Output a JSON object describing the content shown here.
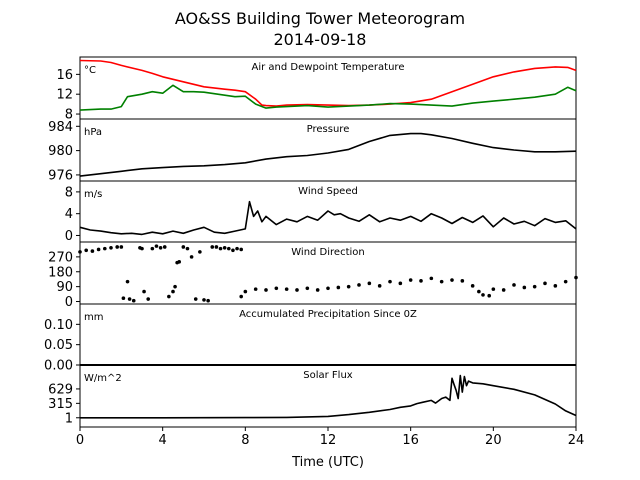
{
  "figure": {
    "title": "AO&SS Building Tower Meteorogram",
    "subtitle": "2014-09-18",
    "xlabel": "Time (UTC)",
    "x_ticks": [
      0,
      4,
      8,
      12,
      16,
      20,
      24
    ],
    "xlim": [
      0,
      24
    ]
  },
  "colors": {
    "temperature": "#ff0000",
    "dewpoint": "#008000",
    "line": "#000000"
  },
  "chart_data": [
    {
      "type": "line",
      "title": "Air and Dewpoint Temperature",
      "unit": "°C",
      "ylim": [
        7,
        19.5
      ],
      "y_ticks": [
        8,
        12,
        16
      ],
      "series": [
        {
          "color": "#ff0000",
          "x": [
            0,
            1,
            1.5,
            2,
            3,
            3.5,
            4,
            4.5,
            5,
            6,
            7,
            7.5,
            8,
            8.5,
            8.8,
            9,
            9.5,
            10,
            11,
            12,
            13,
            14,
            15,
            16,
            17,
            18,
            19,
            20,
            21,
            22,
            23,
            23.6,
            24
          ],
          "y": [
            18.8,
            18.7,
            18.4,
            17.8,
            16.8,
            16.2,
            15.5,
            15,
            14.5,
            13.5,
            13,
            12.8,
            12.5,
            11,
            9.8,
            9.7,
            9.6,
            9.8,
            9.9,
            9.8,
            9.7,
            9.8,
            10,
            10.3,
            11,
            12.5,
            14,
            15.5,
            16.5,
            17.2,
            17.5,
            17.4,
            16.8
          ]
        },
        {
          "color": "#008000",
          "x": [
            0,
            1,
            1.5,
            2,
            2.3,
            3,
            3.5,
            4,
            4.5,
            5,
            5.5,
            6,
            7,
            7.5,
            8,
            8.5,
            9,
            9.5,
            10,
            11,
            12,
            13,
            14,
            15,
            16,
            17,
            18,
            19,
            20,
            21,
            22,
            23,
            23.6,
            24
          ],
          "y": [
            8.8,
            9,
            9,
            9.5,
            11.5,
            12,
            12.5,
            12.2,
            13.8,
            12.5,
            12.5,
            12.4,
            11.8,
            11.5,
            11.6,
            10,
            9.2,
            9.4,
            9.5,
            9.7,
            9.4,
            9.6,
            9.8,
            10.1,
            10,
            9.8,
            9.6,
            10.2,
            10.6,
            11,
            11.4,
            12,
            13.4,
            12.7
          ]
        }
      ]
    },
    {
      "type": "line",
      "title": "Pressure",
      "unit": "hPa",
      "ylim": [
        975,
        985.2
      ],
      "y_ticks": [
        976,
        980,
        984
      ],
      "series": [
        {
          "color": "#000000",
          "x": [
            0,
            1,
            2,
            3,
            4,
            5,
            6,
            7,
            8,
            9,
            10,
            11,
            12,
            13,
            14,
            15,
            16,
            16.5,
            17,
            18,
            19,
            20,
            21,
            22,
            23,
            24
          ],
          "y": [
            975.8,
            976.2,
            976.6,
            977,
            977.2,
            977.4,
            977.5,
            977.7,
            978,
            978.6,
            979,
            979.2,
            979.6,
            980.2,
            981.5,
            982.5,
            982.8,
            982.8,
            982.6,
            982,
            981.2,
            980.5,
            980.1,
            979.8,
            979.8,
            979.9
          ]
        }
      ]
    },
    {
      "type": "line",
      "title": "Wind Speed",
      "unit": "m/s",
      "ylim": [
        -1.2,
        10
      ],
      "y_ticks": [
        0,
        4,
        8
      ],
      "series": [
        {
          "color": "#000000",
          "x": [
            0,
            0.5,
            1,
            1.5,
            2,
            2.5,
            3,
            3.5,
            4,
            4.5,
            5,
            5.5,
            6,
            6.5,
            7,
            7.5,
            8,
            8.2,
            8.4,
            8.6,
            8.8,
            9,
            9.5,
            10,
            10.5,
            11,
            11.5,
            12,
            12.3,
            12.6,
            13,
            13.5,
            14,
            14.5,
            15,
            15.5,
            16,
            16.5,
            17,
            17.5,
            18,
            18.5,
            19,
            19.5,
            20,
            20.5,
            21,
            21.5,
            22,
            22.5,
            23,
            23.5,
            24
          ],
          "y": [
            1.5,
            1,
            0.8,
            0.5,
            0.3,
            0.4,
            0.2,
            0.6,
            0.3,
            0.8,
            0.4,
            1,
            1.5,
            0.6,
            0.4,
            0.8,
            1.2,
            6.2,
            3.5,
            4.5,
            2.5,
            3.5,
            2,
            3,
            2.5,
            3.5,
            2.8,
            4.5,
            3.8,
            4,
            3.2,
            2.6,
            3.8,
            2.5,
            3.2,
            2.8,
            3.5,
            2.6,
            4,
            3.2,
            2.2,
            3.3,
            2.4,
            3.6,
            1.6,
            3.2,
            2.1,
            2.6,
            1.8,
            3.1,
            2.4,
            2.7,
            1.2
          ]
        }
      ]
    },
    {
      "type": "scatter",
      "title": "Wind Direction",
      "ylim": [
        -15,
        360
      ],
      "y_ticks": [
        0,
        90,
        180,
        270
      ],
      "series": [
        {
          "color": "#000000",
          "x": [
            0,
            0.3,
            0.6,
            0.9,
            1.2,
            1.5,
            1.8,
            2,
            2.1,
            2.3,
            2.4,
            2.6,
            2.9,
            3,
            3.1,
            3.3,
            3.5,
            3.7,
            3.9,
            4.1,
            4.3,
            4.5,
            4.6,
            4.7,
            4.8,
            5,
            5.2,
            5.4,
            5.6,
            5.8,
            6,
            6.2,
            6.4,
            6.6,
            6.8,
            7,
            7.2,
            7.4,
            7.6,
            7.8
          ],
          "y": [
            300,
            310,
            305,
            315,
            320,
            325,
            330,
            330,
            20,
            120,
            15,
            5,
            325,
            320,
            60,
            15,
            320,
            335,
            325,
            330,
            30,
            60,
            90,
            235,
            240,
            330,
            320,
            270,
            15,
            300,
            10,
            5,
            330,
            330,
            320,
            325,
            320,
            310,
            320,
            315
          ]
        },
        {
          "color": "#000000",
          "x": [
            7.8,
            8,
            8.5,
            9,
            9.5,
            10,
            10.5,
            11,
            11.5,
            12,
            12.5,
            13,
            13.5,
            14,
            14.5,
            15,
            15.5,
            16,
            16.5,
            17,
            17.5,
            18,
            18.5,
            19,
            19.3,
            19.5,
            19.8,
            20,
            20.5,
            21,
            21.5,
            22,
            22.5,
            23,
            23.5,
            24
          ],
          "y": [
            30,
            60,
            75,
            70,
            80,
            75,
            70,
            80,
            70,
            80,
            85,
            90,
            100,
            110,
            95,
            120,
            110,
            130,
            125,
            140,
            120,
            130,
            125,
            95,
            60,
            40,
            35,
            75,
            70,
            100,
            85,
            90,
            110,
            95,
            120,
            145
          ]
        }
      ]
    },
    {
      "type": "line",
      "title": "Accumulated Precipitation Since 0Z",
      "unit": "mm",
      "ylim": [
        0,
        0.15
      ],
      "y_ticks": [
        "0.00",
        "0.05",
        "0.10"
      ],
      "series": [
        {
          "color": "#000000",
          "x": [
            0,
            24
          ],
          "y": [
            0,
            0
          ]
        }
      ]
    },
    {
      "type": "line",
      "title": "Solar Flux",
      "unit": "W/m^2",
      "ylim": [
        -200,
        1150
      ],
      "y_ticks": [
        1,
        315,
        629
      ],
      "series": [
        {
          "color": "#000000",
          "x": [
            0,
            2,
            4,
            6,
            8,
            10,
            12,
            13,
            14,
            15,
            15.5,
            16,
            16.3,
            16.6,
            17,
            17.2,
            17.5,
            17.7,
            17.9,
            18,
            18.1,
            18.2,
            18.3,
            18.4,
            18.5,
            18.6,
            18.7,
            18.8,
            18.9,
            19,
            19.5,
            20,
            21,
            22,
            23,
            23.5,
            24
          ],
          "y": [
            1,
            1,
            1,
            2,
            5,
            10,
            30,
            70,
            120,
            180,
            230,
            260,
            310,
            340,
            380,
            320,
            420,
            450,
            380,
            860,
            720,
            600,
            420,
            920,
            560,
            900,
            700,
            800,
            780,
            760,
            740,
            700,
            620,
            500,
            300,
            150,
            50
          ]
        }
      ]
    }
  ]
}
